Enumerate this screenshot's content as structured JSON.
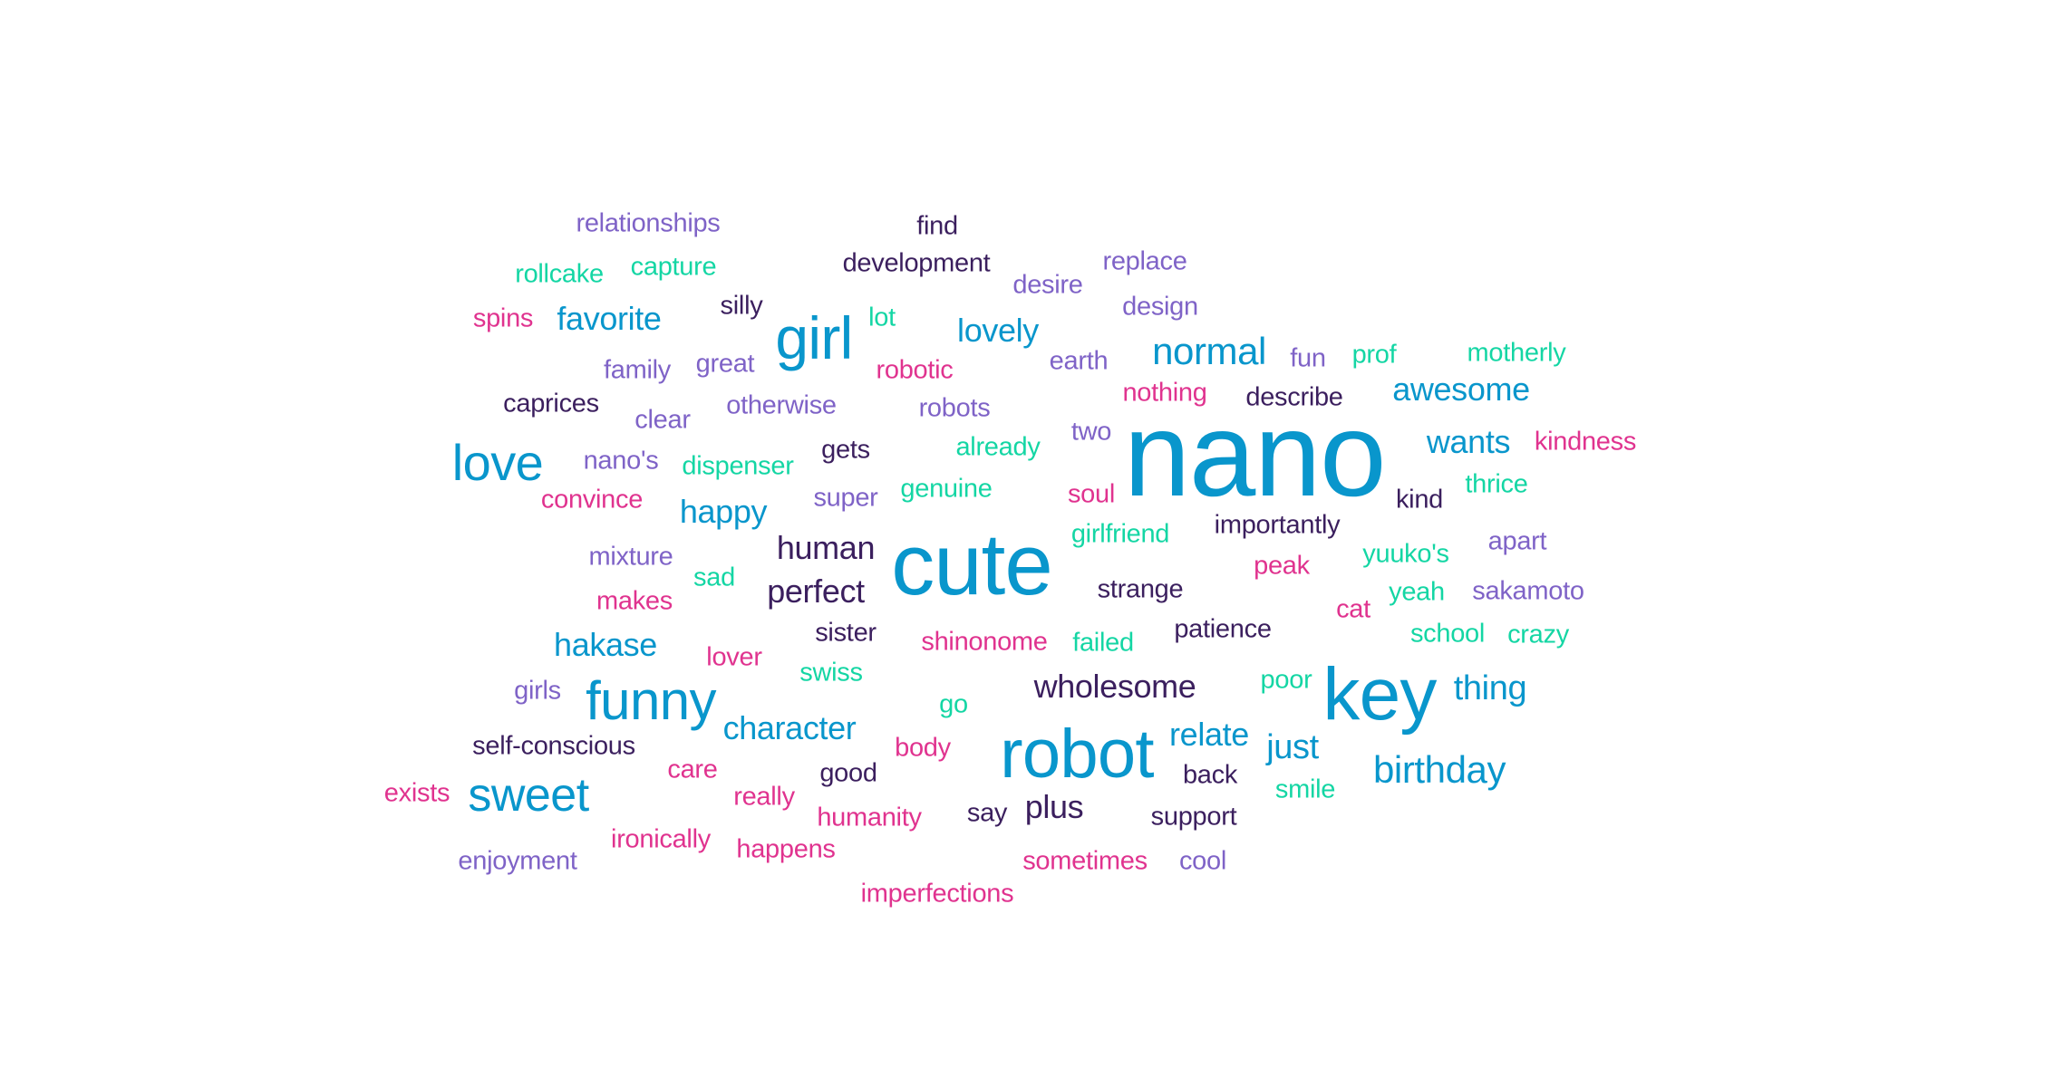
{
  "words": [
    {
      "text": "nano",
      "color": "#0996cc"
    },
    {
      "text": "cute",
      "color": "#0996cc"
    },
    {
      "text": "robot",
      "color": "#0996cc"
    },
    {
      "text": "key",
      "color": "#0996cc"
    },
    {
      "text": "girl",
      "color": "#0996cc"
    },
    {
      "text": "funny",
      "color": "#0996cc"
    },
    {
      "text": "love",
      "color": "#0996cc"
    },
    {
      "text": "sweet",
      "color": "#0996cc"
    },
    {
      "text": "normal",
      "color": "#0996cc"
    },
    {
      "text": "birthday",
      "color": "#0996cc"
    },
    {
      "text": "awesome",
      "color": "#0996cc"
    },
    {
      "text": "wants",
      "color": "#0996cc"
    },
    {
      "text": "favorite",
      "color": "#0996cc"
    },
    {
      "text": "lovely",
      "color": "#0996cc"
    },
    {
      "text": "happy",
      "color": "#0996cc"
    },
    {
      "text": "hakase",
      "color": "#0996cc"
    },
    {
      "text": "character",
      "color": "#0996cc"
    },
    {
      "text": "relate",
      "color": "#0996cc"
    },
    {
      "text": "just",
      "color": "#0996cc"
    },
    {
      "text": "thing",
      "color": "#0996cc"
    },
    {
      "text": "human",
      "color": "#3b1f5e"
    },
    {
      "text": "perfect",
      "color": "#3b1f5e"
    },
    {
      "text": "wholesome",
      "color": "#3b1f5e"
    },
    {
      "text": "plus",
      "color": "#3b1f5e"
    },
    {
      "text": "relationships",
      "color": "#7f63c7"
    },
    {
      "text": "find",
      "color": "#3b1f5e"
    },
    {
      "text": "development",
      "color": "#3b1f5e"
    },
    {
      "text": "replace",
      "color": "#7f63c7"
    },
    {
      "text": "desire",
      "color": "#7f63c7"
    },
    {
      "text": "design",
      "color": "#7f63c7"
    },
    {
      "text": "rollcake",
      "color": "#14d6a4"
    },
    {
      "text": "capture",
      "color": "#14d6a4"
    },
    {
      "text": "spins",
      "color": "#e0338f"
    },
    {
      "text": "silly",
      "color": "#3b1f5e"
    },
    {
      "text": "lot",
      "color": "#14d6a4"
    },
    {
      "text": "family",
      "color": "#7f63c7"
    },
    {
      "text": "great",
      "color": "#7f63c7"
    },
    {
      "text": "robotic",
      "color": "#e0338f"
    },
    {
      "text": "earth",
      "color": "#7f63c7"
    },
    {
      "text": "fun",
      "color": "#7f63c7"
    },
    {
      "text": "prof",
      "color": "#14d6a4"
    },
    {
      "text": "motherly",
      "color": "#14d6a4"
    },
    {
      "text": "caprices",
      "color": "#3b1f5e"
    },
    {
      "text": "otherwise",
      "color": "#7f63c7"
    },
    {
      "text": "robots",
      "color": "#7f63c7"
    },
    {
      "text": "nothing",
      "color": "#e0338f"
    },
    {
      "text": "describe",
      "color": "#3b1f5e"
    },
    {
      "text": "clear",
      "color": "#7f63c7"
    },
    {
      "text": "two",
      "color": "#7f63c7"
    },
    {
      "text": "kindness",
      "color": "#e0338f"
    },
    {
      "text": "nano's",
      "color": "#7f63c7"
    },
    {
      "text": "dispenser",
      "color": "#14d6a4"
    },
    {
      "text": "gets",
      "color": "#3b1f5e"
    },
    {
      "text": "already",
      "color": "#14d6a4"
    },
    {
      "text": "thrice",
      "color": "#14d6a4"
    },
    {
      "text": "convince",
      "color": "#e0338f"
    },
    {
      "text": "super",
      "color": "#7f63c7"
    },
    {
      "text": "genuine",
      "color": "#14d6a4"
    },
    {
      "text": "soul",
      "color": "#e0338f"
    },
    {
      "text": "kind",
      "color": "#3b1f5e"
    },
    {
      "text": "importantly",
      "color": "#3b1f5e"
    },
    {
      "text": "girlfriend",
      "color": "#14d6a4"
    },
    {
      "text": "yuuko's",
      "color": "#14d6a4"
    },
    {
      "text": "apart",
      "color": "#7f63c7"
    },
    {
      "text": "mixture",
      "color": "#7f63c7"
    },
    {
      "text": "sad",
      "color": "#14d6a4"
    },
    {
      "text": "peak",
      "color": "#e0338f"
    },
    {
      "text": "strange",
      "color": "#3b1f5e"
    },
    {
      "text": "yeah",
      "color": "#14d6a4"
    },
    {
      "text": "sakamoto",
      "color": "#7f63c7"
    },
    {
      "text": "makes",
      "color": "#e0338f"
    },
    {
      "text": "cat",
      "color": "#e0338f"
    },
    {
      "text": "sister",
      "color": "#3b1f5e"
    },
    {
      "text": "patience",
      "color": "#3b1f5e"
    },
    {
      "text": "school",
      "color": "#14d6a4"
    },
    {
      "text": "crazy",
      "color": "#14d6a4"
    },
    {
      "text": "shinonome",
      "color": "#e0338f"
    },
    {
      "text": "failed",
      "color": "#14d6a4"
    },
    {
      "text": "lover",
      "color": "#e0338f"
    },
    {
      "text": "swiss",
      "color": "#14d6a4"
    },
    {
      "text": "girls",
      "color": "#7f63c7"
    },
    {
      "text": "poor",
      "color": "#14d6a4"
    },
    {
      "text": "go",
      "color": "#14d6a4"
    },
    {
      "text": "self-conscious",
      "color": "#3b1f5e"
    },
    {
      "text": "body",
      "color": "#e0338f"
    },
    {
      "text": "care",
      "color": "#e0338f"
    },
    {
      "text": "good",
      "color": "#3b1f5e"
    },
    {
      "text": "back",
      "color": "#3b1f5e"
    },
    {
      "text": "exists",
      "color": "#e0338f"
    },
    {
      "text": "smile",
      "color": "#14d6a4"
    },
    {
      "text": "really",
      "color": "#e0338f"
    },
    {
      "text": "say",
      "color": "#3b1f5e"
    },
    {
      "text": "humanity",
      "color": "#e0338f"
    },
    {
      "text": "support",
      "color": "#3b1f5e"
    },
    {
      "text": "ironically",
      "color": "#e0338f"
    },
    {
      "text": "happens",
      "color": "#e0338f"
    },
    {
      "text": "enjoyment",
      "color": "#7f63c7"
    },
    {
      "text": "sometimes",
      "color": "#e0338f"
    },
    {
      "text": "cool",
      "color": "#7f63c7"
    },
    {
      "text": "imperfections",
      "color": "#e0338f"
    }
  ]
}
